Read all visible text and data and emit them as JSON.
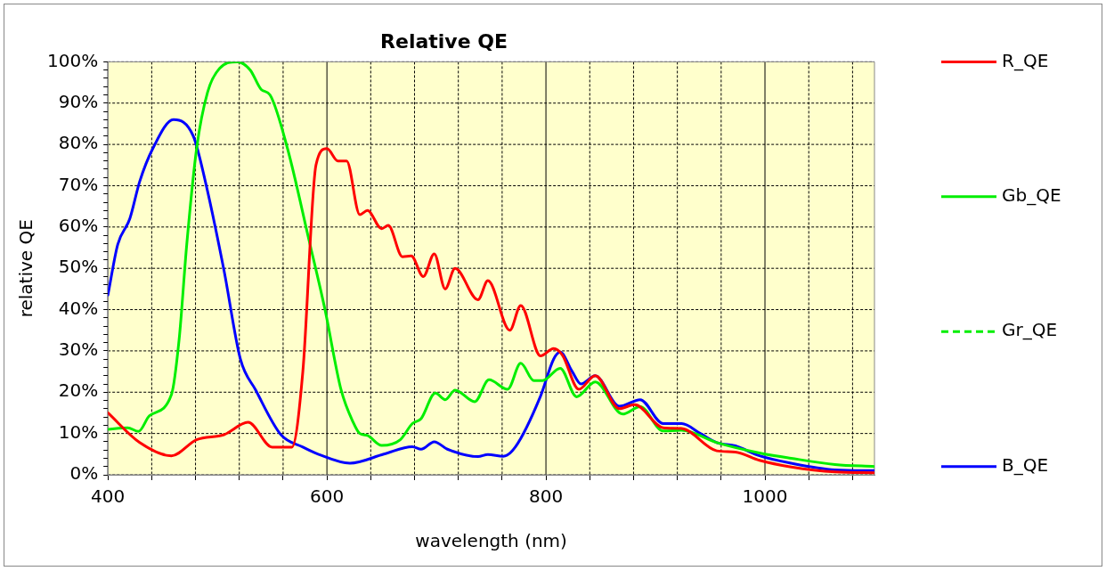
{
  "chart_data": {
    "type": "line",
    "title": "Relative QE",
    "xlabel": "wavelength (nm)",
    "ylabel": "relative QE",
    "xlim": [
      400,
      1100
    ],
    "xticks": [
      400,
      {
        "value": 440,
        "label": null
      },
      {
        "value": 480,
        "label": null
      },
      {
        "value": 520,
        "label": null
      },
      {
        "value": 560,
        "label": null
      },
      600,
      {
        "value": 640,
        "label": null
      },
      {
        "value": 680,
        "label": null
      },
      {
        "value": 720,
        "label": null
      },
      {
        "value": 760,
        "label": null
      },
      800,
      {
        "value": 840,
        "label": null
      },
      {
        "value": 880,
        "label": null
      },
      {
        "value": 920,
        "label": null
      },
      {
        "value": 960,
        "label": null
      },
      1000,
      {
        "value": 1040,
        "label": null
      },
      {
        "value": 1080,
        "label": null
      }
    ],
    "ylim": [
      0,
      100
    ],
    "yticks": [
      {
        "value": 0,
        "label": "0%"
      },
      {
        "value": 2,
        "label": null
      },
      {
        "value": 4,
        "label": null
      },
      {
        "value": 6,
        "label": null
      },
      {
        "value": 8,
        "label": null
      },
      {
        "value": 10,
        "label": "10%"
      },
      {
        "value": 12,
        "label": null
      },
      {
        "value": 14,
        "label": null
      },
      {
        "value": 16,
        "label": null
      },
      {
        "value": 18,
        "label": null
      },
      {
        "value": 20,
        "label": "20%"
      },
      {
        "value": 22,
        "label": null
      },
      {
        "value": 24,
        "label": null
      },
      {
        "value": 26,
        "label": null
      },
      {
        "value": 28,
        "label": null
      },
      {
        "value": 30,
        "label": "30%"
      },
      {
        "value": 32,
        "label": null
      },
      {
        "value": 34,
        "label": null
      },
      {
        "value": 36,
        "label": null
      },
      {
        "value": 38,
        "label": null
      },
      {
        "value": 40,
        "label": "40%"
      },
      {
        "value": 42,
        "label": null
      },
      {
        "value": 44,
        "label": null
      },
      {
        "value": 46,
        "label": null
      },
      {
        "value": 48,
        "label": null
      },
      {
        "value": 50,
        "label": "50%"
      },
      {
        "value": 52,
        "label": null
      },
      {
        "value": 54,
        "label": null
      },
      {
        "value": 56,
        "label": null
      },
      {
        "value": 58,
        "label": null
      },
      {
        "value": 60,
        "label": "60%"
      },
      {
        "value": 62,
        "label": null
      },
      {
        "value": 64,
        "label": null
      },
      {
        "value": 66,
        "label": null
      },
      {
        "value": 68,
        "label": null
      },
      {
        "value": 70,
        "label": "70%"
      },
      {
        "value": 72,
        "label": null
      },
      {
        "value": 74,
        "label": null
      },
      {
        "value": 76,
        "label": null
      },
      {
        "value": 78,
        "label": null
      },
      {
        "value": 80,
        "label": "80%"
      },
      {
        "value": 82,
        "label": null
      },
      {
        "value": 84,
        "label": null
      },
      {
        "value": 86,
        "label": null
      },
      {
        "value": 88,
        "label": null
      },
      {
        "value": 90,
        "label": "90%"
      },
      {
        "value": 92,
        "label": null
      },
      {
        "value": 94,
        "label": null
      },
      {
        "value": 96,
        "label": null
      },
      {
        "value": 98,
        "label": null
      },
      {
        "value": 100,
        "label": "100%"
      }
    ],
    "grid": true,
    "legend": "right",
    "marker": "none",
    "series": [
      {
        "name": "R_QE",
        "color": "#ff0000",
        "x": [
          400,
          429,
          458,
          481,
          506,
          528,
          550,
          568,
          578,
          590,
          600,
          610,
          618,
          630,
          637,
          650,
          656,
          669,
          677,
          688,
          698,
          708,
          717,
          738,
          747,
          767,
          777,
          795,
          807,
          815,
          830,
          845,
          867,
          881,
          907,
          924,
          956,
          973,
          995,
          1024,
          1064,
          1100
        ],
        "values": [
          15,
          7.8,
          4.6,
          8.5,
          9.7,
          12.7,
          6.7,
          6.7,
          25,
          75,
          79,
          76,
          76,
          63,
          64,
          59.6,
          60.4,
          52.8,
          53,
          48,
          53.5,
          45,
          50,
          42.4,
          47,
          35,
          41,
          28.8,
          30.6,
          29,
          20.7,
          24,
          16,
          17,
          11.4,
          11.2,
          5.8,
          5.5,
          3.5,
          1.9,
          0.7,
          0.5
        ]
      },
      {
        "name": "Gb_QE",
        "color": "#00ee00",
        "x": [
          400,
          418,
          428,
          438,
          458,
          465,
          472,
          481,
          491,
          502,
          518,
          530,
          540,
          548,
          564,
          584,
          598,
          613,
          624,
          630,
          637,
          650,
          667,
          678,
          686,
          699,
          708,
          717,
          735,
          748,
          765,
          777,
          789,
          797,
          813,
          828,
          845,
          870,
          886,
          907,
          924,
          956,
          995,
          1024,
          1064,
          1100
        ],
        "values": [
          11,
          11.4,
          10.5,
          14.3,
          19.4,
          32.7,
          55.8,
          79,
          92.6,
          98.4,
          100,
          98,
          93.3,
          92,
          79,
          56.4,
          40.3,
          20.5,
          12.7,
          10,
          9.5,
          7.1,
          8.5,
          12.4,
          13.6,
          19.8,
          18.2,
          20.5,
          17.7,
          23,
          20.7,
          27,
          22.8,
          22.8,
          25.8,
          18.9,
          22.5,
          14.7,
          16.5,
          10.6,
          10.8,
          7.8,
          5.3,
          4,
          2.5,
          2
        ]
      },
      {
        "name": "Gr_QE",
        "color": "#00ee00",
        "line_style": "dashed"
      },
      {
        "name": "B_QE",
        "color": "#0000ff",
        "x": [
          400,
          409,
          420,
          429,
          441,
          460,
          478,
          489,
          506,
          521,
          535,
          558,
          578,
          592,
          621,
          652,
          678,
          686,
          698,
          710,
          738,
          747,
          761,
          772,
          795,
          807,
          813,
          824,
          832,
          845,
          867,
          886,
          907,
          924,
          941,
          956,
          973,
          995,
          1024,
          1064,
          1100
        ],
        "values": [
          43.5,
          55.8,
          62,
          71,
          79,
          86,
          82,
          71,
          49.5,
          28,
          20.5,
          9.7,
          6.7,
          5,
          2.8,
          5,
          6.8,
          6.2,
          8,
          6.2,
          4.4,
          4.9,
          4.5,
          6.7,
          19,
          28,
          29.7,
          25,
          22,
          24,
          16.6,
          18.2,
          12.4,
          12.4,
          10,
          7.8,
          7,
          4.6,
          2.8,
          1.2,
          1
        ]
      }
    ]
  }
}
